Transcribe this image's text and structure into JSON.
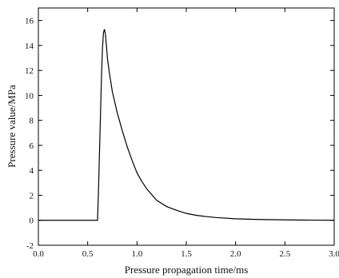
{
  "chart_data": {
    "type": "line",
    "title": "",
    "xlabel": "Pressure propagation time/ms",
    "ylabel": "Pressure value/MPa",
    "xlim": [
      0.0,
      3.0
    ],
    "ylim": [
      -2,
      17
    ],
    "x_ticks": [
      0.0,
      0.5,
      1.0,
      1.5,
      2.0,
      2.5,
      3.0
    ],
    "x_tick_labels": [
      "0.0",
      "0.5",
      "1.0",
      "1.5",
      "2.0",
      "2.5",
      "3.0"
    ],
    "y_ticks": [
      -2,
      0,
      2,
      4,
      6,
      8,
      10,
      12,
      14,
      16
    ],
    "y_tick_labels": [
      "-2",
      "0",
      "2",
      "4",
      "6",
      "8",
      "10",
      "12",
      "14",
      "16"
    ],
    "grid": false,
    "legend": "none",
    "line_color": "#000000",
    "series": [
      {
        "x": [
          0.0,
          0.6,
          0.61,
          0.62,
          0.63,
          0.64,
          0.65,
          0.66,
          0.67,
          0.68,
          0.69,
          0.7,
          0.72,
          0.75,
          0.8,
          0.85,
          0.9,
          0.95,
          1.0,
          1.05,
          1.1,
          1.2,
          1.3,
          1.4,
          1.5,
          1.6,
          1.7,
          1.8,
          2.0,
          2.2,
          2.5,
          2.8,
          3.0
        ],
        "y": [
          0.0,
          0.0,
          2.5,
          5.5,
          8.5,
          11.5,
          13.8,
          15.0,
          15.3,
          14.9,
          14.0,
          13.0,
          11.8,
          10.3,
          8.6,
          7.2,
          5.9,
          4.8,
          3.8,
          3.1,
          2.5,
          1.6,
          1.1,
          0.8,
          0.55,
          0.4,
          0.3,
          0.22,
          0.12,
          0.07,
          0.03,
          0.01,
          0.0
        ]
      }
    ]
  }
}
